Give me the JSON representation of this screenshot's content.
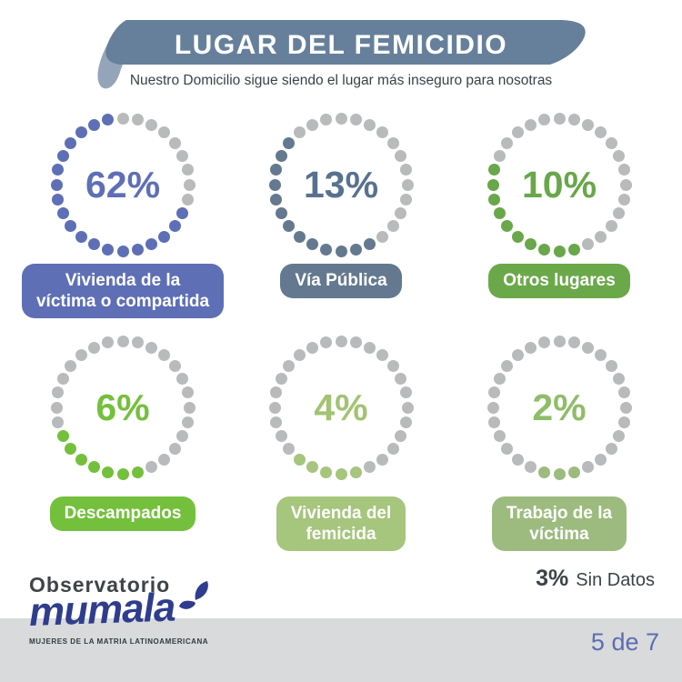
{
  "palette": {
    "ribbon": "#66809b",
    "ribbon_fold": "#94a4b9",
    "dot_gray": "#b9babc",
    "footer_band": "#d9dadb",
    "page_indicator_color": "#5a6db4",
    "logo_blue": "#2e3d8d",
    "text_dark": "#3a4245"
  },
  "header": {
    "title": "LUGAR DEL FEMICIDIO",
    "subtitle": "Nuestro Domicilio sigue siendo el lugar más inseguro para nosotras"
  },
  "chart_data": {
    "type": "pie",
    "style": "dotted-ring-percentage-infographic",
    "title": "Lugar del femicidio",
    "categories": [
      "Vivienda de la víctima o compartida",
      "Vía Pública",
      "Otros lugares",
      "Descampados",
      "Vivienda del femicida",
      "Trabajo de la víctima",
      "Sin Datos"
    ],
    "values": [
      62,
      13,
      10,
      6,
      4,
      2,
      3
    ],
    "units": "%",
    "note": "3% Sin Datos"
  },
  "circles": [
    {
      "value_label": "62%",
      "label": "Vivienda de la\nvíctima o compartida",
      "color": "#5e6fb6",
      "pill_color": "#5e6fb6",
      "number_color": "#5e6fb6",
      "dots_total": 28,
      "arc_start": 9,
      "arc_count": 19
    },
    {
      "value_label": "13%",
      "label": "Vía Pública",
      "color": "#64798f",
      "pill_color": "#64798f",
      "number_color": "#587190",
      "dots_total": 28,
      "arc_start": 12,
      "arc_count": 13
    },
    {
      "value_label": "10%",
      "label": "Otros lugares",
      "color": "#69a74a",
      "pill_color": "#6ba84a",
      "number_color": "#69a74a",
      "dots_total": 28,
      "arc_start": 13,
      "arc_count": 10
    },
    {
      "value_label": "6%",
      "label": "Descampados",
      "color": "#74c03c",
      "pill_color": "#74c03c",
      "number_color": "#74c03c",
      "dots_total": 28,
      "arc_start": 13,
      "arc_count": 7
    },
    {
      "value_label": "4%",
      "label": "Vivienda del\nfemicida",
      "color": "#a6c57d",
      "pill_color": "#a6c57d",
      "number_color": "#a3c373",
      "dots_total": 28,
      "arc_start": 13,
      "arc_count": 5
    },
    {
      "value_label": "2%",
      "label": "Trabajo de la\nvíctima",
      "color": "#9dbb7f",
      "pill_color": "#9dbb7f",
      "number_color": "#8fbd69",
      "dots_total": 28,
      "arc_start": 13,
      "arc_count": 3
    }
  ],
  "footer": {
    "note_value": "3%",
    "note_label": "Sin Datos",
    "page_indicator": "5 de 7"
  },
  "logo": {
    "line1": "Observatorio",
    "wordmark": "mumala",
    "tagline": "MUJERES DE LA MATRIA LATINOAMERICANA"
  }
}
